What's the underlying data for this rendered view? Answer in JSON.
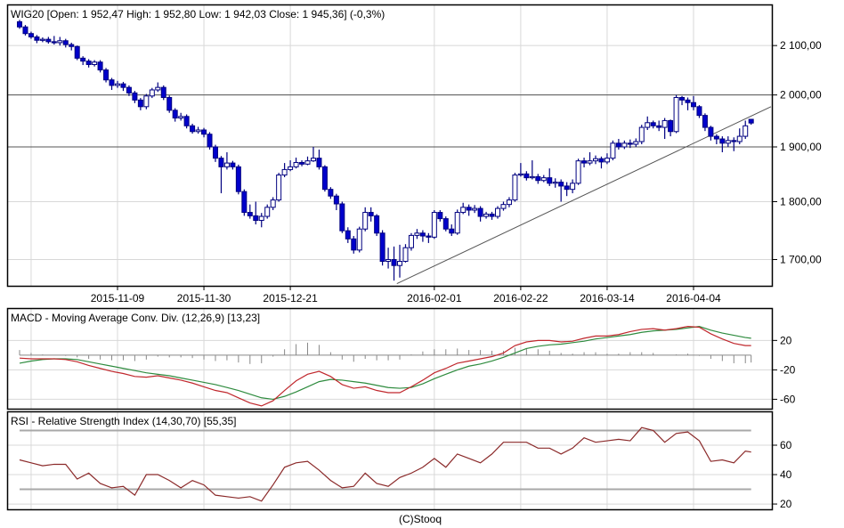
{
  "chart_data": [
    {
      "type": "candlestick",
      "title": "WIG20 [Open: 1 952,47  High: 1 952,80  Low: 1 942,03  Close: 1 945,36] (-0,3%)",
      "yscale": "log",
      "ylim": [
        1655,
        2187
      ],
      "yticks": [
        {
          "value": 2100,
          "label": "2 100,00"
        },
        {
          "value": 2000,
          "label": "2 000,00"
        },
        {
          "value": 1900,
          "label": "1 900,00"
        },
        {
          "value": 1800,
          "label": "1 800,00"
        },
        {
          "value": 1700,
          "label": "1 700,00"
        }
      ],
      "horizontal_lines": [
        2000,
        1900
      ],
      "trendline": {
        "from": {
          "index": 65.5,
          "value": 1660
        },
        "to": {
          "index": 131,
          "value": 1977
        }
      },
      "xticks": [
        {
          "index": 2,
          "label": ""
        },
        {
          "index": 17,
          "label": "2015-11-09"
        },
        {
          "index": 32,
          "label": "2015-11-30"
        },
        {
          "index": 47,
          "label": "2015-12-21"
        },
        {
          "index": 72,
          "label": "2016-02-01"
        },
        {
          "index": 87,
          "label": "2016-02-22"
        },
        {
          "index": 102,
          "label": "2016-03-14"
        },
        {
          "index": 117,
          "label": "2016-04-04"
        }
      ],
      "grid": true,
      "colors": {
        "down_fill": "#0000cc",
        "up_fill": "#ffffff",
        "outline": "#000080",
        "hline": "#555555",
        "grid": "#d8d8d8"
      },
      "ohlc": [
        [
          2150,
          2154,
          2135,
          2139
        ],
        [
          2139,
          2143,
          2121,
          2125
        ],
        [
          2125,
          2129,
          2114,
          2118
        ],
        [
          2118,
          2122,
          2105,
          2111
        ],
        [
          2111,
          2117,
          2107,
          2113
        ],
        [
          2113,
          2118,
          2104,
          2108
        ],
        [
          2108,
          2120,
          2102,
          2106
        ],
        [
          2106,
          2118,
          2100,
          2110
        ],
        [
          2110,
          2114,
          2096,
          2102
        ],
        [
          2102,
          2106,
          2090,
          2098
        ],
        [
          2098,
          2100,
          2070,
          2074
        ],
        [
          2074,
          2078,
          2060,
          2068
        ],
        [
          2068,
          2072,
          2055,
          2061
        ],
        [
          2061,
          2070,
          2057,
          2066
        ],
        [
          2066,
          2070,
          2045,
          2050
        ],
        [
          2050,
          2054,
          2025,
          2030
        ],
        [
          2030,
          2034,
          2010,
          2019
        ],
        [
          2019,
          2028,
          2014,
          2022
        ],
        [
          2022,
          2026,
          2008,
          2015
        ],
        [
          2015,
          2019,
          1998,
          2004
        ],
        [
          2004,
          2008,
          1984,
          1990
        ],
        [
          1990,
          1994,
          1970,
          1977
        ],
        [
          1977,
          2002,
          1972,
          1998
        ],
        [
          1998,
          2014,
          1994,
          2010
        ],
        [
          2010,
          2025,
          2006,
          2015
        ],
        [
          2015,
          2019,
          1990,
          1995
        ],
        [
          1995,
          1999,
          1965,
          1970
        ],
        [
          1970,
          1974,
          1948,
          1955
        ],
        [
          1955,
          1965,
          1950,
          1958
        ],
        [
          1958,
          1962,
          1935,
          1940
        ],
        [
          1940,
          1944,
          1925,
          1929
        ],
        [
          1929,
          1938,
          1925,
          1932
        ],
        [
          1932,
          1936,
          1918,
          1924
        ],
        [
          1924,
          1928,
          1895,
          1900
        ],
        [
          1900,
          1904,
          1872,
          1879
        ],
        [
          1879,
          1883,
          1815,
          1863
        ],
        [
          1863,
          1890,
          1858,
          1870
        ],
        [
          1870,
          1874,
          1858,
          1863
        ],
        [
          1863,
          1867,
          1813,
          1818
        ],
        [
          1818,
          1822,
          1775,
          1781
        ],
        [
          1781,
          1795,
          1770,
          1775
        ],
        [
          1775,
          1800,
          1760,
          1767
        ],
        [
          1767,
          1780,
          1755,
          1774
        ],
        [
          1774,
          1795,
          1770,
          1790
        ],
        [
          1790,
          1808,
          1785,
          1803
        ],
        [
          1803,
          1852,
          1800,
          1848
        ],
        [
          1848,
          1870,
          1844,
          1858
        ],
        [
          1858,
          1875,
          1855,
          1863
        ],
        [
          1863,
          1880,
          1860,
          1871
        ],
        [
          1871,
          1875,
          1864,
          1868
        ],
        [
          1868,
          1882,
          1866,
          1874
        ],
        [
          1874,
          1900,
          1872,
          1879
        ],
        [
          1879,
          1895,
          1858,
          1863
        ],
        [
          1863,
          1866,
          1818,
          1822
        ],
        [
          1822,
          1826,
          1805,
          1810
        ],
        [
          1810,
          1814,
          1785,
          1796
        ],
        [
          1796,
          1800,
          1745,
          1749
        ],
        [
          1749,
          1755,
          1728,
          1735
        ],
        [
          1735,
          1740,
          1710,
          1716
        ],
        [
          1716,
          1756,
          1712,
          1752
        ],
        [
          1752,
          1790,
          1748,
          1781
        ],
        [
          1781,
          1790,
          1765,
          1775
        ],
        [
          1775,
          1778,
          1740,
          1745
        ],
        [
          1745,
          1750,
          1690,
          1697
        ],
        [
          1697,
          1720,
          1685,
          1700
        ],
        [
          1700,
          1722,
          1665,
          1690
        ],
        [
          1690,
          1725,
          1670,
          1697
        ],
        [
          1697,
          1726,
          1695,
          1720
        ],
        [
          1720,
          1745,
          1715,
          1741
        ],
        [
          1741,
          1752,
          1735,
          1745
        ],
        [
          1745,
          1750,
          1730,
          1740
        ],
        [
          1740,
          1745,
          1728,
          1738
        ],
        [
          1738,
          1785,
          1735,
          1781
        ],
        [
          1781,
          1785,
          1765,
          1770
        ],
        [
          1770,
          1774,
          1748,
          1752
        ],
        [
          1752,
          1760,
          1740,
          1745
        ],
        [
          1745,
          1786,
          1742,
          1781
        ],
        [
          1781,
          1798,
          1778,
          1790
        ],
        [
          1790,
          1795,
          1775,
          1785
        ],
        [
          1785,
          1794,
          1780,
          1788
        ],
        [
          1788,
          1792,
          1765,
          1774
        ],
        [
          1774,
          1782,
          1770,
          1778
        ],
        [
          1778,
          1782,
          1768,
          1774
        ],
        [
          1774,
          1792,
          1770,
          1788
        ],
        [
          1788,
          1800,
          1784,
          1795
        ],
        [
          1795,
          1808,
          1790,
          1803
        ],
        [
          1803,
          1852,
          1800,
          1848
        ],
        [
          1848,
          1870,
          1845,
          1850
        ],
        [
          1850,
          1855,
          1838,
          1843
        ],
        [
          1843,
          1875,
          1840,
          1845
        ],
        [
          1845,
          1850,
          1832,
          1838
        ],
        [
          1838,
          1848,
          1835,
          1843
        ],
        [
          1843,
          1860,
          1828,
          1833
        ],
        [
          1833,
          1842,
          1825,
          1835
        ],
        [
          1835,
          1840,
          1800,
          1828
        ],
        [
          1828,
          1835,
          1810,
          1822
        ],
        [
          1822,
          1840,
          1815,
          1833
        ],
        [
          1833,
          1878,
          1830,
          1874
        ],
        [
          1874,
          1880,
          1862,
          1870
        ],
        [
          1870,
          1890,
          1866,
          1874
        ],
        [
          1874,
          1884,
          1868,
          1878
        ],
        [
          1878,
          1882,
          1860,
          1872
        ],
        [
          1872,
          1888,
          1868,
          1879
        ],
        [
          1879,
          1912,
          1875,
          1907
        ],
        [
          1907,
          1915,
          1895,
          1900
        ],
        [
          1900,
          1912,
          1896,
          1907
        ],
        [
          1907,
          1914,
          1898,
          1905
        ],
        [
          1905,
          1916,
          1900,
          1910
        ],
        [
          1910,
          1942,
          1905,
          1937
        ],
        [
          1937,
          1958,
          1932,
          1946
        ],
        [
          1946,
          1950,
          1935,
          1940
        ],
        [
          1940,
          1950,
          1930,
          1937
        ],
        [
          1937,
          1955,
          1915,
          1950
        ],
        [
          1950,
          1952,
          1920,
          1929
        ],
        [
          1929,
          2000,
          1926,
          1995
        ],
        [
          1995,
          1998,
          1980,
          1990
        ],
        [
          1990,
          1995,
          1970,
          1985
        ],
        [
          1985,
          1998,
          1970,
          1977
        ],
        [
          1977,
          1980,
          1955,
          1960
        ],
        [
          1960,
          1964,
          1930,
          1937
        ],
        [
          1937,
          1940,
          1912,
          1920
        ],
        [
          1920,
          1924,
          1905,
          1915
        ],
        [
          1915,
          1920,
          1890,
          1907
        ],
        [
          1907,
          1920,
          1900,
          1912
        ],
        [
          1912,
          1918,
          1892,
          1910
        ],
        [
          1910,
          1935,
          1905,
          1920
        ],
        [
          1920,
          1950,
          1915,
          1940
        ],
        [
          1952.47,
          1952.8,
          1942.03,
          1945.36
        ]
      ]
    },
    {
      "type": "line",
      "title": "MACD - Moving Average Conv. Div. (12,26,9) [13,23]",
      "ylim": [
        -74,
        64
      ],
      "yticks": [
        {
          "value": 20,
          "label": "20"
        },
        {
          "value": -20,
          "label": "-20"
        },
        {
          "value": -60,
          "label": "-60"
        }
      ],
      "grid": true,
      "colors": {
        "macd": "#c0282d",
        "signal": "#2e8b3e",
        "histogram": "#888888"
      },
      "index": [
        0,
        2,
        4,
        6,
        8,
        10,
        12,
        14,
        16,
        18,
        20,
        22,
        24,
        26,
        28,
        30,
        32,
        34,
        36,
        38,
        40,
        42,
        44,
        46,
        48,
        50,
        52,
        54,
        56,
        58,
        60,
        62,
        64,
        66,
        68,
        70,
        72,
        74,
        76,
        78,
        80,
        82,
        84,
        86,
        88,
        90,
        92,
        94,
        96,
        98,
        100,
        102,
        104,
        106,
        108,
        110,
        112,
        114,
        116,
        118,
        120,
        122,
        124,
        126,
        127
      ],
      "series": [
        {
          "key": "macd",
          "values": [
            -4,
            -5,
            -5,
            -5,
            -6,
            -9,
            -14,
            -18,
            -22,
            -25,
            -29,
            -30,
            -28,
            -31,
            -34,
            -38,
            -43,
            -48,
            -51,
            -58,
            -65,
            -69,
            -62,
            -48,
            -35,
            -26,
            -22,
            -29,
            -40,
            -45,
            -43,
            -48,
            -51,
            -51,
            -43,
            -34,
            -24,
            -18,
            -11,
            -8,
            -5,
            -2,
            3,
            13,
            18,
            20,
            20,
            18,
            19,
            23,
            26,
            26,
            28,
            32,
            35,
            36,
            34,
            36,
            39,
            38,
            29,
            22,
            16,
            13,
            13
          ]
        },
        {
          "key": "signal",
          "values": [
            -11,
            -8,
            -6,
            -5,
            -5,
            -6,
            -9,
            -12,
            -15,
            -18,
            -21,
            -24,
            -26,
            -28,
            -31,
            -34,
            -37,
            -40,
            -44,
            -48,
            -53,
            -58,
            -60,
            -56,
            -50,
            -43,
            -36,
            -33,
            -34,
            -36,
            -38,
            -41,
            -44,
            -45,
            -44,
            -39,
            -32,
            -26,
            -20,
            -15,
            -12,
            -8,
            -3,
            3,
            9,
            12,
            14,
            15,
            17,
            19,
            22,
            24,
            26,
            28,
            31,
            33,
            34,
            35,
            37,
            39,
            34,
            30,
            27,
            24,
            23
          ]
        }
      ]
    },
    {
      "type": "line",
      "title": "RSI - Relative Strength Index (14,30,70) [55,35]",
      "ylim": [
        15.8,
        83
      ],
      "yticks": [
        {
          "value": 60,
          "label": "60"
        },
        {
          "value": 40,
          "label": "40"
        },
        {
          "value": 20,
          "label": "20"
        }
      ],
      "levels": [
        70,
        30
      ],
      "grid": true,
      "colors": {
        "rsi": "#8b2a2a",
        "level": "#a8a8a8"
      },
      "index": [
        0,
        2,
        4,
        6,
        8,
        10,
        12,
        14,
        16,
        18,
        20,
        22,
        24,
        26,
        28,
        30,
        32,
        34,
        36,
        38,
        40,
        42,
        44,
        46,
        48,
        50,
        52,
        54,
        56,
        58,
        60,
        62,
        64,
        66,
        68,
        70,
        72,
        74,
        76,
        78,
        80,
        82,
        84,
        86,
        88,
        90,
        92,
        94,
        96,
        98,
        100,
        102,
        104,
        106,
        108,
        110,
        112,
        114,
        116,
        118,
        120,
        122,
        124,
        126,
        127
      ],
      "values": [
        50,
        48,
        46,
        47,
        47,
        37,
        41,
        34,
        31,
        32,
        26,
        40,
        40,
        36,
        31,
        36,
        33,
        26,
        25,
        24,
        25,
        22,
        33,
        45,
        48,
        49,
        43,
        36,
        31,
        32,
        41,
        34,
        32,
        38,
        41,
        45,
        51,
        45,
        54,
        51,
        48,
        54,
        62,
        62,
        62,
        58,
        58,
        54,
        58,
        65,
        62,
        63,
        64,
        63,
        72,
        70,
        62,
        68,
        69,
        63,
        49,
        50,
        48,
        56,
        55.35
      ]
    }
  ],
  "footer": "(C)Stooq"
}
